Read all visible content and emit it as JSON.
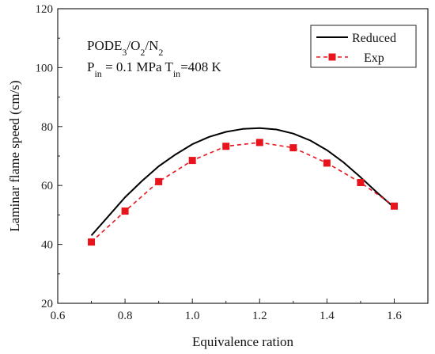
{
  "chart_data": {
    "type": "line",
    "xlabel": "Equivalence ration",
    "ylabel": "Laminar flame speed (cm/s)",
    "xlim": [
      0.6,
      1.7
    ],
    "ylim": [
      20,
      120
    ],
    "xticks": [
      0.6,
      0.8,
      1.0,
      1.2,
      1.4,
      1.6
    ],
    "yticks": [
      20,
      40,
      60,
      80,
      100,
      120
    ],
    "xtick_labels": [
      "0.6",
      "0.8",
      "1.0",
      "1.2",
      "1.4",
      "1.6"
    ],
    "ytick_labels": [
      "20",
      "40",
      "60",
      "80",
      "100",
      "120"
    ],
    "grid": false,
    "legend_position": "top-right",
    "annotations": {
      "mixture": {
        "base": "PODE",
        "sub1": "3",
        "mid1": "/O",
        "sub2": "2",
        "mid2": "/N",
        "sub3": "2"
      },
      "conditions": {
        "p": "P",
        "p_sub": "in",
        "p_val": " = 0.1 MPa  T",
        "t_sub": "in",
        "t_val": "=408 K"
      }
    },
    "series": [
      {
        "name": "Reduced",
        "style": "solid",
        "color": "#000000",
        "x": [
          0.7,
          0.75,
          0.8,
          0.85,
          0.9,
          0.95,
          1.0,
          1.05,
          1.1,
          1.15,
          1.2,
          1.25,
          1.3,
          1.35,
          1.4,
          1.45,
          1.5,
          1.55,
          1.6
        ],
        "values": [
          43.0,
          49.5,
          56.0,
          61.5,
          66.5,
          70.5,
          74.0,
          76.5,
          78.2,
          79.2,
          79.5,
          79.0,
          77.6,
          75.3,
          72.0,
          67.8,
          62.8,
          57.5,
          52.5
        ]
      },
      {
        "name": "Exp",
        "style": "dashed",
        "marker": "square",
        "color": "#e8141c",
        "x": [
          0.7,
          0.8,
          0.9,
          1.0,
          1.1,
          1.2,
          1.3,
          1.4,
          1.5,
          1.6
        ],
        "values": [
          40.8,
          51.3,
          61.3,
          68.5,
          73.3,
          74.6,
          72.8,
          67.6,
          61.0,
          53.0
        ]
      }
    ]
  }
}
